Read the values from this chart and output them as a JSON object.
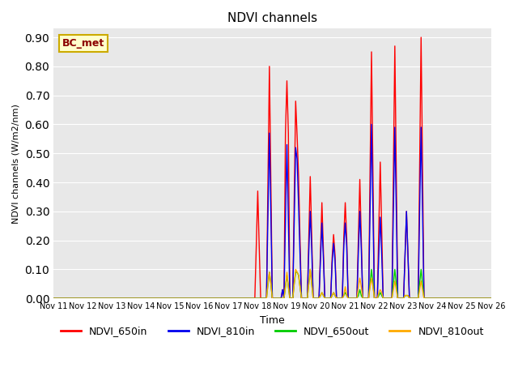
{
  "title": "NDVI channels",
  "ylabel": "NDVI channels (W/m2/nm)",
  "xlabel": "Time",
  "annotation": "BC_met",
  "ylim": [
    0.0,
    0.93
  ],
  "yticks": [
    0.0,
    0.1,
    0.2,
    0.3,
    0.4,
    0.5,
    0.6,
    0.7,
    0.8,
    0.9
  ],
  "legend_labels": [
    "NDVI_650in",
    "NDVI_810in",
    "NDVI_650out",
    "NDVI_810out"
  ],
  "colors": {
    "NDVI_650in": "#ff0000",
    "NDVI_810in": "#0000ee",
    "NDVI_650out": "#00cc00",
    "NDVI_810out": "#ffaa00"
  },
  "bg_color": "#e8e8e8",
  "time_points": [
    0.0,
    0.5,
    1.0,
    1.5,
    2.0,
    2.5,
    3.0,
    3.5,
    4.0,
    4.5,
    5.0,
    5.5,
    6.0,
    6.5,
    6.9,
    6.95,
    7.0,
    7.05,
    7.1,
    7.3,
    7.35,
    7.4,
    7.45,
    7.5,
    7.8,
    7.85,
    7.9,
    7.95,
    8.0,
    8.05,
    8.1,
    8.2,
    8.25,
    8.3,
    8.35,
    8.4,
    8.45,
    8.5,
    8.7,
    8.75,
    8.8,
    8.85,
    8.9,
    9.1,
    9.15,
    9.2,
    9.25,
    9.3,
    9.5,
    9.55,
    9.6,
    9.65,
    9.7,
    9.9,
    9.95,
    10.0,
    10.05,
    10.1,
    10.4,
    10.45,
    10.5,
    10.55,
    10.6,
    10.8,
    10.85,
    10.9,
    10.95,
    11.0,
    11.1,
    11.15,
    11.2,
    11.25,
    11.3,
    11.6,
    11.65,
    11.7,
    11.75,
    11.8,
    12.0,
    12.05,
    12.1,
    12.15,
    12.2,
    12.5,
    12.55,
    12.6,
    12.65,
    12.7,
    13.0,
    13.5,
    14.0,
    14.5,
    15.0
  ],
  "NDVI_650in": [
    0.0,
    0.0,
    0.0,
    0.0,
    0.0,
    0.0,
    0.0,
    0.0,
    0.0,
    0.0,
    0.0,
    0.0,
    0.0,
    0.0,
    0.0,
    0.18,
    0.37,
    0.18,
    0.0,
    0.0,
    0.4,
    0.8,
    0.4,
    0.0,
    0.0,
    0.03,
    0.0,
    0.57,
    0.75,
    0.57,
    0.0,
    0.0,
    0.34,
    0.68,
    0.56,
    0.42,
    0.2,
    0.0,
    0.0,
    0.21,
    0.42,
    0.22,
    0.0,
    0.0,
    0.16,
    0.33,
    0.17,
    0.0,
    0.0,
    0.14,
    0.22,
    0.15,
    0.0,
    0.0,
    0.21,
    0.33,
    0.21,
    0.0,
    0.0,
    0.21,
    0.41,
    0.21,
    0.0,
    0.0,
    0.43,
    0.85,
    0.43,
    0.0,
    0.0,
    0.24,
    0.47,
    0.24,
    0.0,
    0.0,
    0.43,
    0.87,
    0.43,
    0.0,
    0.0,
    0.15,
    0.3,
    0.15,
    0.0,
    0.0,
    0.45,
    0.9,
    0.45,
    0.0,
    0.0,
    0.0,
    0.0,
    0.0,
    0.0
  ],
  "NDVI_810in": [
    0.0,
    0.0,
    0.0,
    0.0,
    0.0,
    0.0,
    0.0,
    0.0,
    0.0,
    0.0,
    0.0,
    0.0,
    0.0,
    0.0,
    0.0,
    0.0,
    0.0,
    0.0,
    0.0,
    0.0,
    0.29,
    0.57,
    0.29,
    0.0,
    0.0,
    0.03,
    0.0,
    0.27,
    0.53,
    0.27,
    0.0,
    0.0,
    0.26,
    0.52,
    0.48,
    0.32,
    0.15,
    0.0,
    0.0,
    0.16,
    0.3,
    0.17,
    0.0,
    0.0,
    0.13,
    0.26,
    0.14,
    0.0,
    0.0,
    0.12,
    0.19,
    0.13,
    0.0,
    0.0,
    0.18,
    0.26,
    0.18,
    0.0,
    0.0,
    0.16,
    0.3,
    0.17,
    0.0,
    0.0,
    0.3,
    0.6,
    0.3,
    0.0,
    0.0,
    0.15,
    0.28,
    0.15,
    0.0,
    0.0,
    0.3,
    0.59,
    0.3,
    0.0,
    0.0,
    0.15,
    0.3,
    0.15,
    0.0,
    0.0,
    0.3,
    0.59,
    0.3,
    0.0,
    0.0,
    0.0,
    0.0,
    0.0,
    0.0
  ],
  "NDVI_650out": [
    0.0,
    0.0,
    0.0,
    0.0,
    0.0,
    0.0,
    0.0,
    0.0,
    0.0,
    0.0,
    0.0,
    0.0,
    0.0,
    0.0,
    0.0,
    0.0,
    0.0,
    0.0,
    0.0,
    0.0,
    0.05,
    0.09,
    0.05,
    0.0,
    0.0,
    0.0,
    0.0,
    0.04,
    0.08,
    0.04,
    0.0,
    0.0,
    0.05,
    0.09,
    0.09,
    0.08,
    0.04,
    0.0,
    0.0,
    0.05,
    0.1,
    0.05,
    0.0,
    0.0,
    0.01,
    0.02,
    0.01,
    0.0,
    0.0,
    0.01,
    0.02,
    0.01,
    0.0,
    0.0,
    0.01,
    0.02,
    0.01,
    0.0,
    0.0,
    0.01,
    0.03,
    0.01,
    0.0,
    0.0,
    0.05,
    0.1,
    0.05,
    0.0,
    0.0,
    0.01,
    0.02,
    0.01,
    0.0,
    0.0,
    0.05,
    0.1,
    0.05,
    0.0,
    0.0,
    0.01,
    0.01,
    0.01,
    0.0,
    0.0,
    0.05,
    0.1,
    0.05,
    0.0,
    0.0,
    0.0,
    0.0,
    0.0,
    0.0
  ],
  "NDVI_810out": [
    0.0,
    0.0,
    0.0,
    0.0,
    0.0,
    0.0,
    0.0,
    0.0,
    0.0,
    0.0,
    0.0,
    0.0,
    0.0,
    0.0,
    0.0,
    0.0,
    0.0,
    0.0,
    0.0,
    0.0,
    0.05,
    0.09,
    0.05,
    0.0,
    0.0,
    0.0,
    0.0,
    0.04,
    0.09,
    0.04,
    0.0,
    0.0,
    0.05,
    0.1,
    0.09,
    0.08,
    0.04,
    0.0,
    0.0,
    0.05,
    0.1,
    0.05,
    0.0,
    0.0,
    0.01,
    0.02,
    0.01,
    0.0,
    0.0,
    0.01,
    0.02,
    0.01,
    0.0,
    0.0,
    0.01,
    0.04,
    0.01,
    0.0,
    0.0,
    0.04,
    0.07,
    0.04,
    0.0,
    0.0,
    0.04,
    0.07,
    0.04,
    0.0,
    0.0,
    0.02,
    0.03,
    0.02,
    0.0,
    0.0,
    0.03,
    0.06,
    0.03,
    0.0,
    0.0,
    0.01,
    0.01,
    0.01,
    0.0,
    0.0,
    0.03,
    0.06,
    0.03,
    0.0,
    0.0,
    0.0,
    0.0,
    0.0,
    0.0
  ],
  "xtick_labels": [
    "Nov 11",
    "Nov 12",
    "Nov 13",
    "Nov 14",
    "Nov 15",
    "Nov 16",
    "Nov 17",
    "Nov 18",
    "Nov 19",
    "Nov 20",
    "Nov 21",
    "Nov 22",
    "Nov 23",
    "Nov 24",
    "Nov 25",
    "Nov 26"
  ],
  "xtick_positions": [
    0,
    1,
    2,
    3,
    4,
    5,
    6,
    7,
    8,
    9,
    10,
    11,
    12,
    13,
    14,
    15
  ]
}
